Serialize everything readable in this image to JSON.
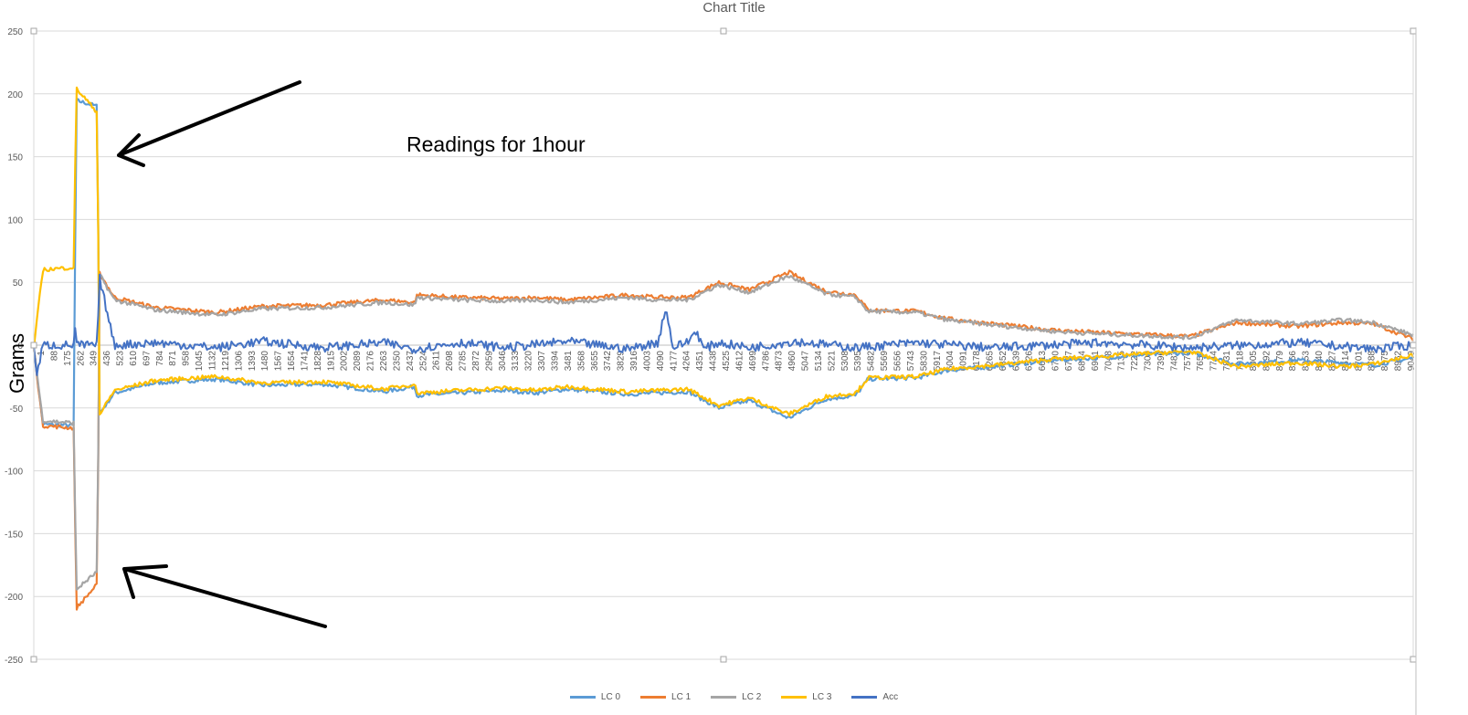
{
  "chart_data": {
    "type": "line",
    "title": "Chart Title",
    "ylabel": "Grams",
    "xlabel": "",
    "annotation": "Readings for 1hour",
    "ylim": [
      -250,
      250
    ],
    "yticks": [
      250,
      200,
      150,
      100,
      50,
      0,
      -50,
      -100,
      -150,
      -200,
      -250
    ],
    "xlim": [
      1,
      9060
    ],
    "xticks": [
      "1",
      "88",
      "175",
      "262",
      "349",
      "436",
      "523",
      "610",
      "697",
      "784",
      "871",
      "958",
      "1045",
      "1132",
      "1219",
      "1306",
      "1393",
      "1480",
      "1567",
      "1654",
      "1741",
      "1828",
      "1915",
      "2002",
      "2089",
      "2176",
      "2263",
      "2350",
      "2437",
      "2524",
      "2611",
      "2698",
      "2785",
      "2872",
      "2959",
      "3046",
      "3133",
      "3220",
      "3307",
      "3394",
      "3481",
      "3568",
      "3655",
      "3742",
      "3829",
      "3916",
      "4003",
      "4090",
      "4177",
      "4264",
      "4351",
      "4438",
      "4525",
      "4612",
      "4699",
      "4786",
      "4873",
      "4960",
      "5047",
      "5134",
      "5221",
      "5308",
      "5395",
      "5482",
      "5569",
      "5656",
      "5743",
      "5830",
      "5917",
      "6004",
      "6091",
      "6178",
      "6265",
      "6352",
      "6439",
      "6526",
      "6613",
      "6700",
      "6787",
      "6874",
      "6961",
      "7048",
      "7135",
      "7222",
      "7309",
      "7396",
      "7483",
      "7570",
      "7657",
      "7744",
      "7831",
      "7918",
      "8005",
      "8092",
      "8179",
      "8266",
      "8353",
      "8440",
      "8527",
      "8614",
      "8701",
      "8788",
      "8875",
      "8962",
      "9049"
    ],
    "grid": true,
    "legend_position": "bottom",
    "series": [
      {
        "name": "LC 0",
        "color": "#5B9BD5",
        "x": [
          1,
          60,
          270,
          275,
          420,
          430,
          530,
          800,
          1200,
          1500,
          1900,
          2300,
          2500,
          2520,
          2800,
          3100,
          3300,
          3500,
          3900,
          4100,
          4300,
          4500,
          4700,
          4960,
          5200,
          5400,
          5480,
          5800,
          6000,
          6300,
          6700,
          7000,
          7400,
          7600,
          7900,
          8300,
          8600,
          8800,
          9060
        ],
        "y": [
          -2,
          -63,
          -64,
          195,
          190,
          -55,
          -38,
          -30,
          -27,
          -32,
          -31,
          -37,
          -33,
          -40,
          -38,
          -36,
          -38,
          -35,
          -39,
          -38,
          -37,
          -50,
          -44,
          -58,
          -43,
          -40,
          -27,
          -26,
          -20,
          -17,
          -12,
          -10,
          -7,
          -6,
          -15,
          -12,
          -14,
          -16,
          -10
        ]
      },
      {
        "name": "LC 1",
        "color": "#ED7D31",
        "x": [
          1,
          60,
          270,
          275,
          420,
          430,
          530,
          800,
          1200,
          1500,
          1900,
          2300,
          2500,
          2520,
          2800,
          3100,
          3300,
          3500,
          3900,
          4100,
          4300,
          4500,
          4700,
          4960,
          5200,
          5400,
          5480,
          5800,
          6000,
          6300,
          6700,
          7000,
          7400,
          7600,
          7900,
          8300,
          8600,
          8800,
          9060
        ],
        "y": [
          -2,
          -64,
          -66,
          -210,
          -190,
          58,
          38,
          30,
          26,
          31,
          32,
          36,
          34,
          40,
          38,
          37,
          38,
          36,
          40,
          38,
          38,
          50,
          44,
          58,
          43,
          40,
          28,
          27,
          21,
          17,
          12,
          10,
          8,
          7,
          18,
          15,
          18,
          17,
          5
        ]
      },
      {
        "name": "LC 2",
        "color": "#A5A5A5",
        "x": [
          1,
          60,
          270,
          275,
          420,
          430,
          530,
          800,
          1200,
          1500,
          1900,
          2300,
          2500,
          2520,
          2800,
          3100,
          3300,
          3500,
          3900,
          4100,
          4300,
          4500,
          4700,
          4960,
          5200,
          5400,
          5480,
          5800,
          6000,
          6300,
          6700,
          7000,
          7400,
          7600,
          7900,
          8300,
          8600,
          8800,
          9060
        ],
        "y": [
          -2,
          -60,
          -62,
          -195,
          -180,
          57,
          36,
          28,
          24,
          29,
          30,
          34,
          32,
          38,
          36,
          35,
          36,
          34,
          38,
          36,
          36,
          48,
          42,
          55,
          41,
          38,
          27,
          26,
          20,
          16,
          11,
          9,
          7,
          6,
          20,
          17,
          20,
          18,
          8
        ]
      },
      {
        "name": "LC 3",
        "color": "#FFC000",
        "x": [
          1,
          60,
          270,
          275,
          420,
          430,
          530,
          800,
          1200,
          1500,
          1900,
          2300,
          2500,
          2520,
          2800,
          3100,
          3300,
          3500,
          3900,
          4100,
          4300,
          4500,
          4700,
          4960,
          5200,
          5400,
          5480,
          5800,
          6000,
          6300,
          6700,
          7000,
          7400,
          7600,
          7900,
          8300,
          8600,
          8800,
          9060
        ],
        "y": [
          -2,
          60,
          62,
          205,
          185,
          -56,
          -36,
          -28,
          -25,
          -30,
          -29,
          -35,
          -31,
          -38,
          -36,
          -34,
          -36,
          -33,
          -37,
          -36,
          -35,
          -48,
          -42,
          -55,
          -41,
          -38,
          -26,
          -25,
          -19,
          -16,
          -11,
          -9,
          -6,
          -5,
          -17,
          -14,
          -17,
          -15,
          -8
        ]
      },
      {
        "name": "Acc",
        "color": "#4472C4",
        "x": [
          1,
          20,
          60,
          270,
          275,
          280,
          420,
          430,
          530,
          800,
          1200,
          1500,
          1900,
          2300,
          2500,
          2800,
          3100,
          3500,
          3900,
          4100,
          4150,
          4200,
          4300,
          4350,
          4400,
          4500,
          4700,
          5000,
          5400,
          5800,
          6300,
          7000,
          7600,
          8300,
          8800,
          9060
        ],
        "y": [
          0,
          -25,
          0,
          0,
          25,
          0,
          0,
          55,
          0,
          2,
          -2,
          3,
          -2,
          2,
          -3,
          2,
          -2,
          3,
          -3,
          2,
          30,
          -2,
          3,
          12,
          -3,
          2,
          -2,
          3,
          -2,
          2,
          -2,
          2,
          -2,
          2,
          -3,
          0
        ]
      }
    ]
  }
}
